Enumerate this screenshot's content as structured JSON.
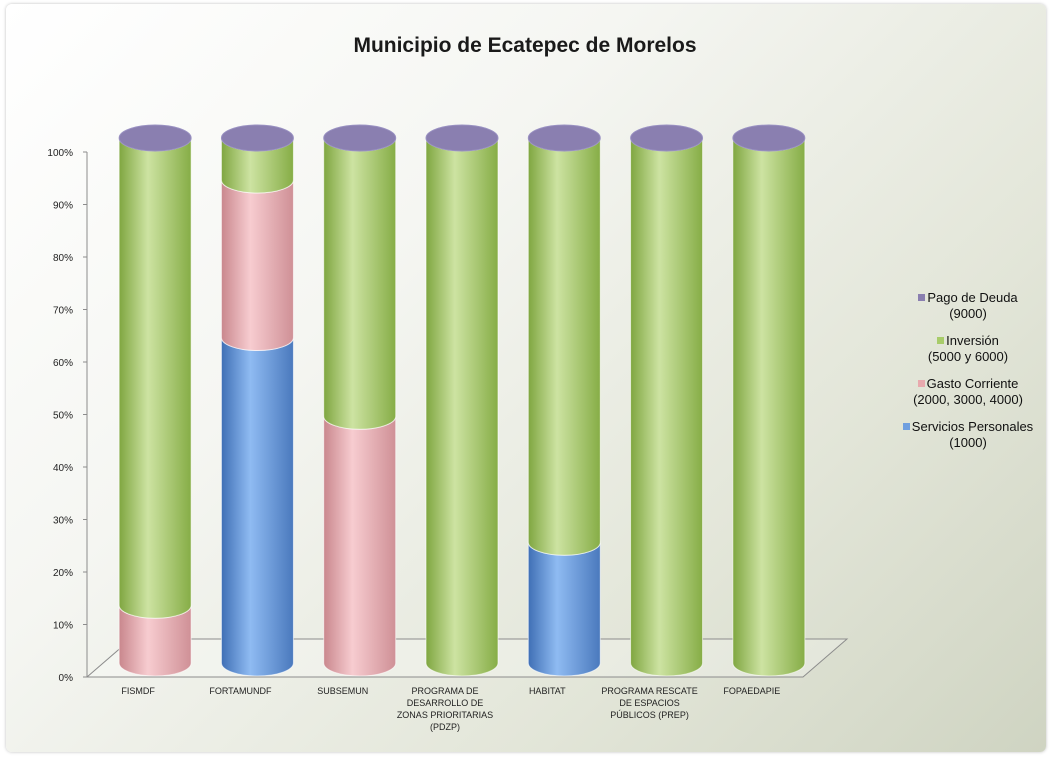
{
  "chart_data": {
    "type": "bar",
    "stacked": true,
    "percent": true,
    "title": "Municipio de Ecatepec de Morelos",
    "categories": [
      [
        "FISMDF"
      ],
      [
        "FORTAMUNDF"
      ],
      [
        "SUBSEMUN"
      ],
      [
        "PROGRAMA DE",
        "DESARROLLO DE",
        "ZONAS PRIORITARIAS",
        "(PDZP)"
      ],
      [
        "HABITAT"
      ],
      [
        "PROGRAMA RESCATE",
        "DE ESPACIOS",
        "PÚBLICOS (PREP)"
      ],
      [
        "FOPAEDAPIE"
      ]
    ],
    "yticks": [
      "0%",
      "10%",
      "20%",
      "30%",
      "40%",
      "50%",
      "60%",
      "70%",
      "80%",
      "90%",
      "100%"
    ],
    "ylim": [
      0,
      100
    ],
    "legend_position": "right",
    "series": [
      {
        "name": "Servicios Personales (1000)",
        "label_lines": [
          "Servicios Personales",
          "(1000)"
        ],
        "color": "#6f9fdf",
        "values": [
          0,
          62,
          0,
          0,
          23,
          0,
          0
        ]
      },
      {
        "name": "Gasto Corriente (2000, 3000, 4000)",
        "label_lines": [
          "Gasto Corriente",
          "(2000, 3000, 4000)"
        ],
        "color": "#e8a9ae",
        "values": [
          11,
          30,
          47,
          0,
          0,
          0,
          0
        ]
      },
      {
        "name": "Inversión (5000 y 6000)",
        "label_lines": [
          "Inversión",
          "(5000 y 6000)"
        ],
        "color": "#a8cc6a",
        "values": [
          89,
          8,
          53,
          100,
          77,
          100,
          100
        ]
      },
      {
        "name": "Pago de Deuda (9000)",
        "label_lines": [
          "Pago de Deuda",
          "(9000)"
        ],
        "color": "#8a7fb0",
        "values": [
          0,
          0,
          0,
          0,
          0,
          0,
          0
        ]
      }
    ]
  }
}
